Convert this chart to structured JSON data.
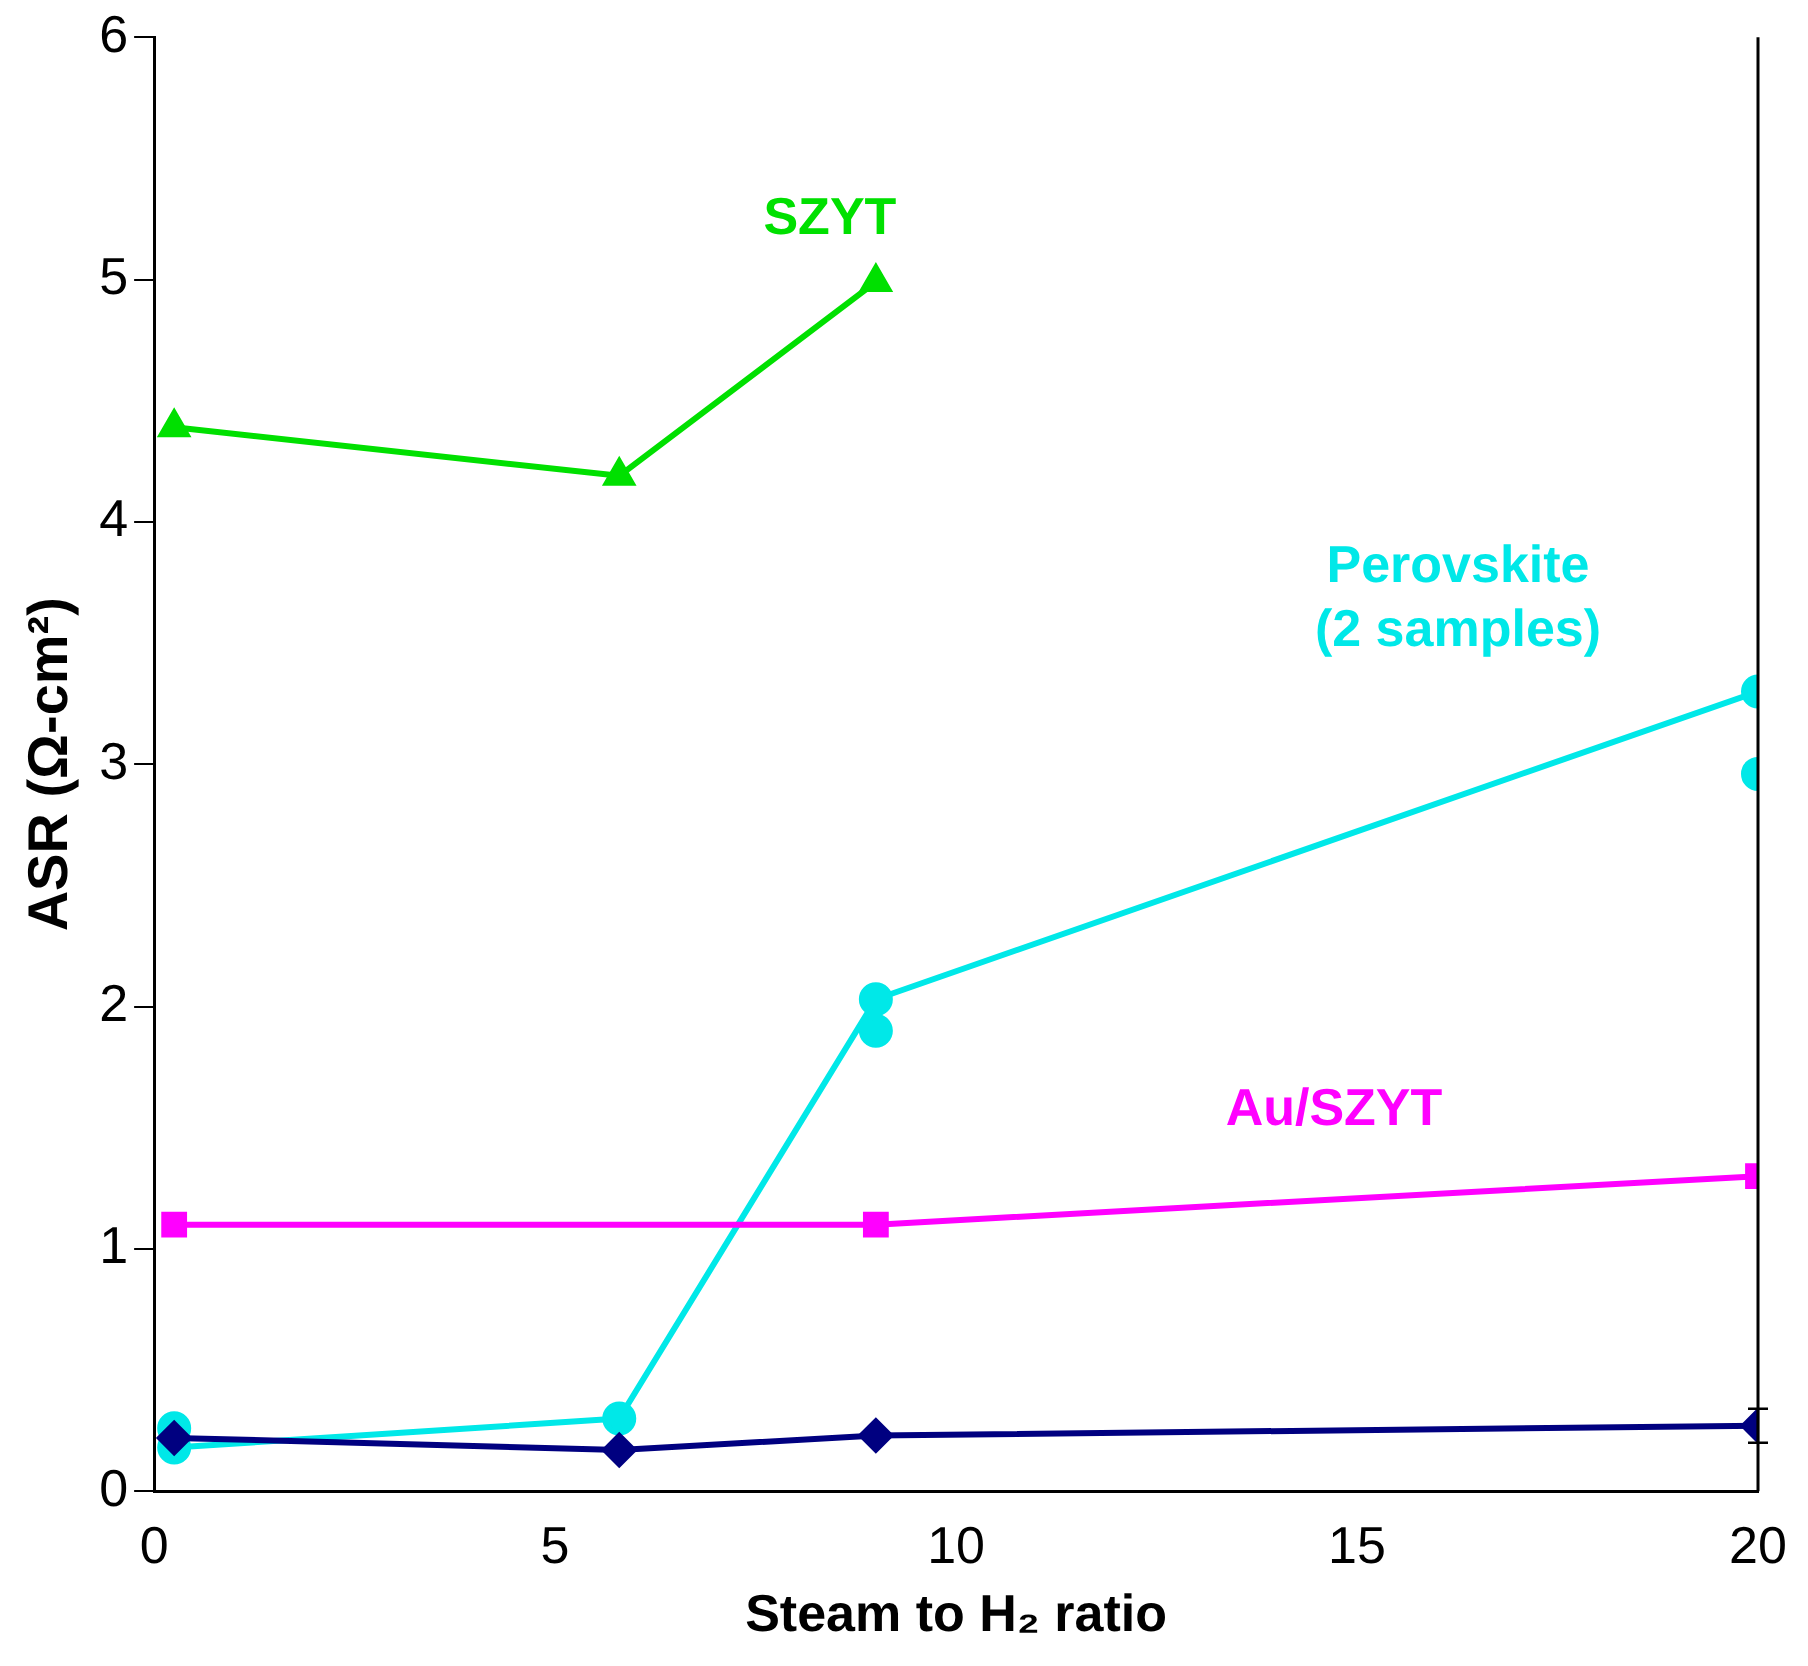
{
  "chart_data": {
    "type": "line",
    "xlabel": "Steam to H₂ ratio",
    "ylabel": "ASR (Ω-cm²)",
    "xlim": [
      0,
      20
    ],
    "xticks": [
      0,
      5,
      10,
      15,
      20
    ],
    "ylim": [
      0,
      6
    ],
    "yticks": [
      0,
      1,
      2,
      3,
      4,
      5,
      6
    ],
    "grid": false,
    "legend": false,
    "series": [
      {
        "name": "SZYT",
        "color": "#00e000",
        "marker": "triangle",
        "x": [
          0.25,
          5.8,
          9
        ],
        "values": [
          4.39,
          4.19,
          4.99
        ]
      },
      {
        "name": "Perovskite (2 samples)",
        "color": "#00e8e8",
        "marker": "circle",
        "x": [
          0.25,
          5.8,
          9,
          20
        ],
        "values": [
          0.18,
          0.3,
          2.03,
          3.3
        ]
      },
      {
        "type": "scatter",
        "color": "#00e8e8",
        "marker": "circle",
        "x": [
          0.25,
          9,
          20
        ],
        "values": [
          0.26,
          1.9,
          2.96
        ]
      },
      {
        "name": "Au/SZYT",
        "color": "#ff00ff",
        "marker": "square",
        "x": [
          0.25,
          9,
          20
        ],
        "values": [
          1.1,
          1.1,
          1.3
        ]
      },
      {
        "color": "#000080",
        "marker": "diamond",
        "x": [
          0.25,
          5.8,
          9,
          20
        ],
        "values": [
          0.22,
          0.17,
          0.23,
          0.27
        ],
        "errors": [
          null,
          null,
          null,
          0.07
        ]
      }
    ]
  }
}
